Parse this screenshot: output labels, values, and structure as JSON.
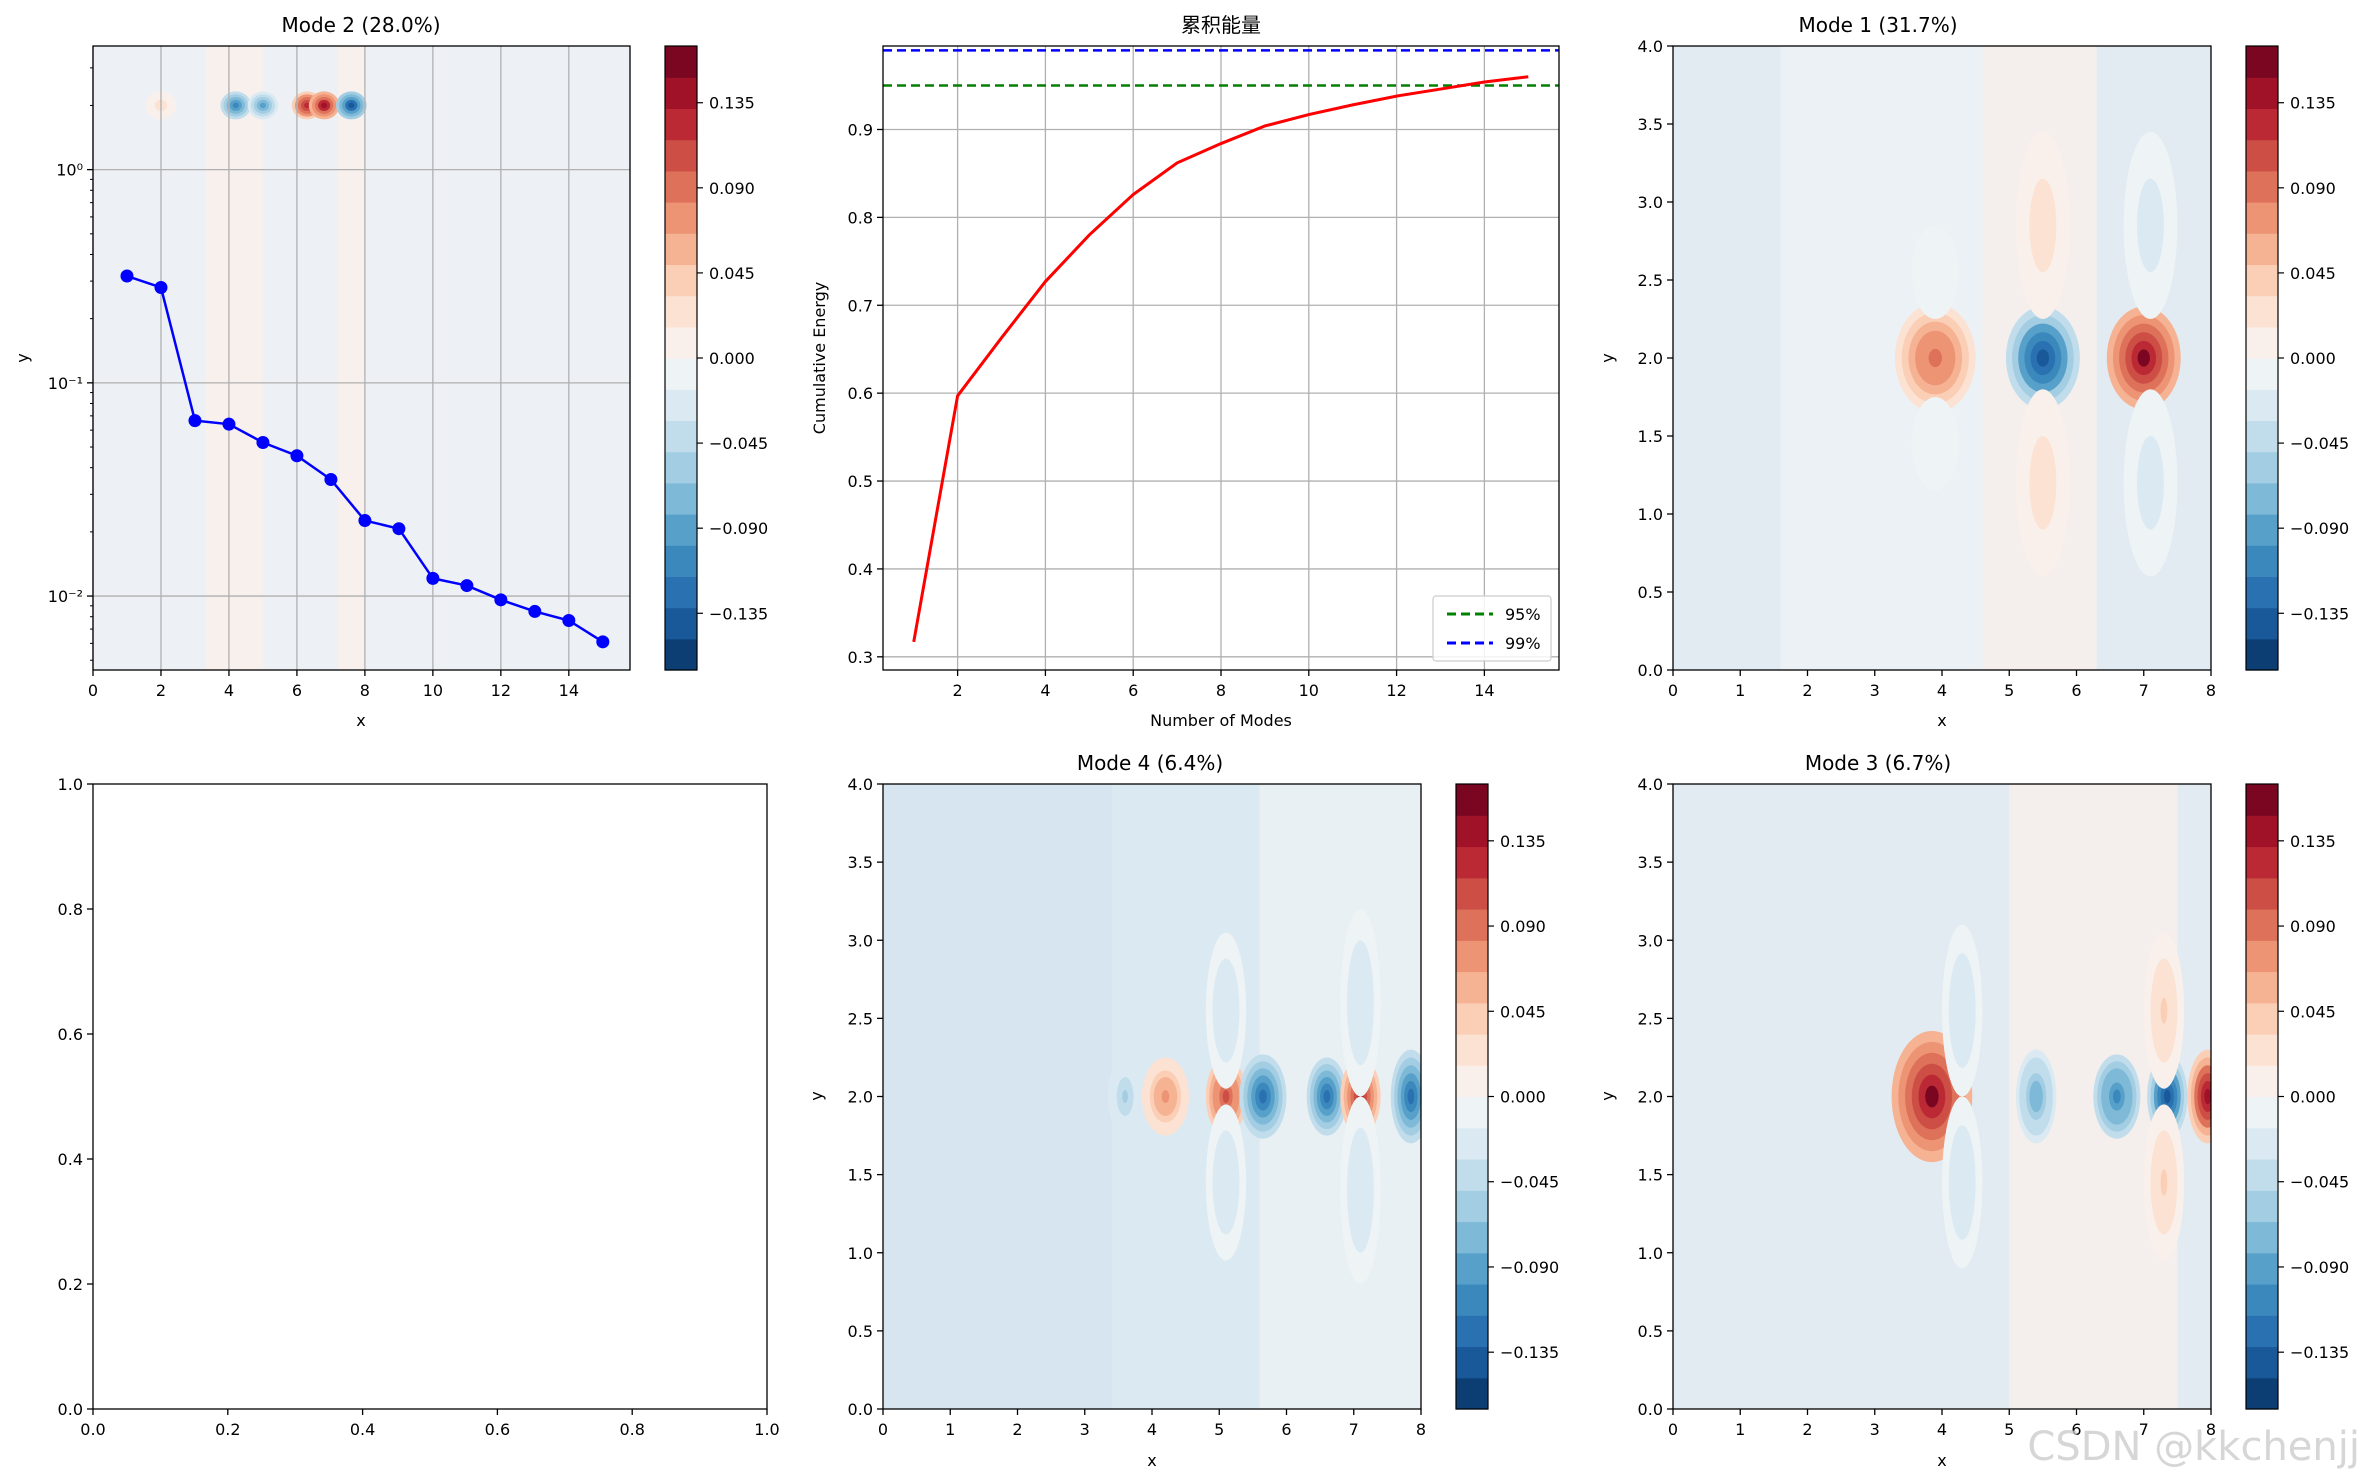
{
  "figure": {
    "watermark": "CSDN @kkchenjj"
  },
  "chart_data": [
    {
      "id": "mode2",
      "type": "heatmap",
      "title": "Mode 2 (28.0%)",
      "xlabel": "x",
      "ylabel": "y",
      "xticks": [
        "0",
        "2",
        "4",
        "6",
        "8",
        "10",
        "12",
        "14"
      ],
      "yticks": [
        "10⁰",
        "10⁻¹",
        "10⁻²"
      ],
      "ytick_values": [
        1,
        0.1,
        0.01
      ],
      "xlim": [
        0,
        15.8
      ],
      "yscale": "log",
      "ylim": [
        0.0045,
        3.8
      ],
      "grid": true,
      "overlay_series": {
        "type": "line",
        "marker": "circle",
        "color": "#0000ff",
        "x": [
          1,
          2,
          3,
          4,
          5,
          6,
          7,
          8,
          9,
          10,
          11,
          12,
          13,
          14,
          15
        ],
        "y": [
          0.317,
          0.28,
          0.0665,
          0.064,
          0.0525,
          0.0455,
          0.0352,
          0.0226,
          0.0207,
          0.0121,
          0.0112,
          0.0096,
          0.00847,
          0.00768,
          0.0061
        ]
      },
      "field": {
        "background": "#edf1f5",
        "features": [
          {
            "x": 4.2,
            "y": 2.0,
            "value": -0.11
          },
          {
            "x": 5.0,
            "y": 2.0,
            "value": -0.09
          },
          {
            "x": 6.3,
            "y": 2.0,
            "value": 0.13
          },
          {
            "x": 6.8,
            "y": 2.0,
            "value": 0.14
          },
          {
            "x": 7.6,
            "y": 2.0,
            "value": -0.14
          },
          {
            "x": 2.0,
            "y": 2.0,
            "value": 0.02
          }
        ]
      },
      "colorbar": {
        "ticks": [
          "0.135",
          "0.090",
          "0.045",
          "0.000",
          "−0.045",
          "−0.090",
          "−0.135"
        ],
        "tick_values": [
          0.135,
          0.09,
          0.045,
          0,
          -0.045,
          -0.09,
          -0.135
        ],
        "range": [
          -0.165,
          0.165
        ]
      }
    },
    {
      "id": "cumulative",
      "type": "line",
      "title": "累积能量",
      "xlabel": "Number of Modes",
      "ylabel": "Cumulative Energy",
      "xticks": [
        "2",
        "4",
        "6",
        "8",
        "10",
        "12",
        "14"
      ],
      "xtick_values": [
        2,
        4,
        6,
        8,
        10,
        12,
        14
      ],
      "yticks": [
        "0.3",
        "0.4",
        "0.5",
        "0.6",
        "0.7",
        "0.8",
        "0.9"
      ],
      "ytick_values": [
        0.3,
        0.4,
        0.5,
        0.6,
        0.7,
        0.8,
        0.9
      ],
      "xlim": [
        0.3,
        15.7
      ],
      "ylim": [
        0.285,
        0.995
      ],
      "grid": true,
      "legend_position": "lower-right",
      "series": [
        {
          "color": "#ff0000",
          "style": "solid",
          "x": [
            1,
            2,
            3,
            4,
            5,
            6,
            7,
            8,
            9,
            10,
            11,
            12,
            13,
            14,
            15
          ],
          "y": [
            0.317,
            0.597,
            0.663,
            0.727,
            0.78,
            0.826,
            0.862,
            0.884,
            0.904,
            0.917,
            0.928,
            0.938,
            0.946,
            0.954,
            0.96
          ]
        }
      ],
      "hlines": [
        {
          "name": "95%",
          "y": 0.95,
          "color": "#008000",
          "style": "dashed"
        },
        {
          "name": "99%",
          "y": 0.99,
          "color": "#0000ff",
          "style": "dashed"
        }
      ]
    },
    {
      "id": "mode1",
      "type": "heatmap",
      "title": "Mode 1 (31.7%)",
      "xlabel": "x",
      "ylabel": "y",
      "xticks": [
        "0",
        "1",
        "2",
        "3",
        "4",
        "5",
        "6",
        "7",
        "8"
      ],
      "yticks": [
        "0.0",
        "0.5",
        "1.0",
        "1.5",
        "2.0",
        "2.5",
        "3.0",
        "3.5",
        "4.0"
      ],
      "xlim": [
        0,
        8
      ],
      "ylim": [
        0,
        4
      ],
      "field": {
        "background": "#e2ebf2",
        "bands": [
          {
            "x_from": 1.6,
            "x_to": 4.6,
            "value": -0.004
          },
          {
            "x_from": 4.6,
            "x_to": 6.3,
            "value": 0.002
          }
        ],
        "features": [
          {
            "x": 3.9,
            "y": 2.0,
            "value": 0.09,
            "w": 0.6,
            "h": 0.35
          },
          {
            "x": 5.5,
            "y": 2.0,
            "value": -0.14,
            "w": 0.55,
            "h": 0.33
          },
          {
            "x": 7.0,
            "y": 2.0,
            "value": 0.15,
            "w": 0.55,
            "h": 0.33
          },
          {
            "x": 5.5,
            "y": 2.85,
            "value": 0.025,
            "w": 0.4,
            "h": 0.6
          },
          {
            "x": 5.5,
            "y": 1.2,
            "value": 0.025,
            "w": 0.4,
            "h": 0.6
          },
          {
            "x": 7.1,
            "y": 2.85,
            "value": -0.025,
            "w": 0.4,
            "h": 0.6
          },
          {
            "x": 7.1,
            "y": 1.2,
            "value": -0.025,
            "w": 0.4,
            "h": 0.6
          },
          {
            "x": 3.9,
            "y": 2.55,
            "value": -0.012,
            "w": 0.35,
            "h": 0.3
          },
          {
            "x": 3.9,
            "y": 1.45,
            "value": -0.012,
            "w": 0.35,
            "h": 0.3
          }
        ]
      },
      "colorbar": {
        "ticks": [
          "0.135",
          "0.090",
          "0.045",
          "0.000",
          "−0.045",
          "−0.090",
          "−0.135"
        ],
        "tick_values": [
          0.135,
          0.09,
          0.045,
          0,
          -0.045,
          -0.09,
          -0.135
        ],
        "range": [
          -0.165,
          0.165
        ]
      }
    },
    {
      "id": "empty",
      "type": "line",
      "xticks": [
        "0.0",
        "0.2",
        "0.4",
        "0.6",
        "0.8",
        "1.0"
      ],
      "yticks": [
        "0.0",
        "0.2",
        "0.4",
        "0.6",
        "0.8",
        "1.0"
      ],
      "xlim": [
        0,
        1
      ],
      "ylim": [
        0,
        1
      ],
      "series": []
    },
    {
      "id": "mode4",
      "type": "heatmap",
      "title": "Mode 4 (6.4%)",
      "xlabel": "x",
      "ylabel": "y",
      "xticks": [
        "0",
        "1",
        "2",
        "3",
        "4",
        "5",
        "6",
        "7",
        "8"
      ],
      "yticks": [
        "0.0",
        "0.5",
        "1.0",
        "1.5",
        "2.0",
        "2.5",
        "3.0",
        "3.5",
        "4.0"
      ],
      "xlim": [
        0,
        8
      ],
      "ylim": [
        0,
        4
      ],
      "field": {
        "background": "#d6e5f0",
        "bands": [
          {
            "x_from": 3.4,
            "x_to": 5.6,
            "value": -0.02
          },
          {
            "x_from": 5.6,
            "x_to": 8.0,
            "value": -0.006
          }
        ],
        "features": [
          {
            "x": 3.6,
            "y": 2.0,
            "value": -0.05,
            "w": 0.25,
            "h": 0.25
          },
          {
            "x": 4.2,
            "y": 2.0,
            "value": 0.07,
            "w": 0.35,
            "h": 0.25
          },
          {
            "x": 5.1,
            "y": 2.0,
            "value": 0.11,
            "w": 0.3,
            "h": 0.25
          },
          {
            "x": 5.65,
            "y": 2.0,
            "value": -0.13,
            "w": 0.35,
            "h": 0.27
          },
          {
            "x": 6.6,
            "y": 2.0,
            "value": -0.12,
            "w": 0.3,
            "h": 0.25
          },
          {
            "x": 7.1,
            "y": 2.0,
            "value": 0.13,
            "w": 0.3,
            "h": 0.25
          },
          {
            "x": 7.85,
            "y": 2.0,
            "value": -0.13,
            "w": 0.3,
            "h": 0.3
          },
          {
            "x": 5.1,
            "y": 2.55,
            "value": -0.03,
            "w": 0.3,
            "h": 0.5
          },
          {
            "x": 5.1,
            "y": 1.45,
            "value": -0.03,
            "w": 0.3,
            "h": 0.5
          },
          {
            "x": 7.1,
            "y": 2.6,
            "value": -0.03,
            "w": 0.3,
            "h": 0.6
          },
          {
            "x": 7.1,
            "y": 1.4,
            "value": -0.03,
            "w": 0.3,
            "h": 0.6
          }
        ]
      },
      "colorbar": {
        "ticks": [
          "0.135",
          "0.090",
          "0.045",
          "0.000",
          "−0.045",
          "−0.090",
          "−0.135"
        ],
        "tick_values": [
          0.135,
          0.09,
          0.045,
          0,
          -0.045,
          -0.09,
          -0.135
        ],
        "range": [
          -0.165,
          0.165
        ]
      }
    },
    {
      "id": "mode3",
      "type": "heatmap",
      "title": "Mode 3 (6.7%)",
      "xlabel": "x",
      "ylabel": "y",
      "xticks": [
        "0",
        "1",
        "2",
        "3",
        "4",
        "5",
        "6",
        "7",
        "8"
      ],
      "yticks": [
        "0.0",
        "0.5",
        "1.0",
        "1.5",
        "2.0",
        "2.5",
        "3.0",
        "3.5",
        "4.0"
      ],
      "xlim": [
        0,
        8
      ],
      "ylim": [
        0,
        4
      ],
      "field": {
        "background": "#e2ebf2",
        "bands": [
          {
            "x_from": 5.0,
            "x_to": 7.5,
            "value": 0.003
          }
        ],
        "features": [
          {
            "x": 3.85,
            "y": 2.0,
            "value": 0.15,
            "w": 0.6,
            "h": 0.42
          },
          {
            "x": 5.4,
            "y": 2.0,
            "value": -0.08,
            "w": 0.3,
            "h": 0.3
          },
          {
            "x": 6.6,
            "y": 2.0,
            "value": -0.11,
            "w": 0.35,
            "h": 0.27
          },
          {
            "x": 7.35,
            "y": 2.0,
            "value": -0.14,
            "w": 0.3,
            "h": 0.27
          },
          {
            "x": 7.95,
            "y": 2.0,
            "value": 0.14,
            "w": 0.3,
            "h": 0.3
          },
          {
            "x": 4.3,
            "y": 2.55,
            "value": -0.03,
            "w": 0.3,
            "h": 0.55
          },
          {
            "x": 4.3,
            "y": 1.45,
            "value": -0.03,
            "w": 0.3,
            "h": 0.55
          },
          {
            "x": 7.3,
            "y": 2.55,
            "value": 0.035,
            "w": 0.3,
            "h": 0.5
          },
          {
            "x": 7.3,
            "y": 1.45,
            "value": 0.035,
            "w": 0.3,
            "h": 0.5
          }
        ]
      },
      "colorbar": {
        "ticks": [
          "0.135",
          "0.090",
          "0.045",
          "0.000",
          "−0.045",
          "−0.090",
          "−0.135"
        ],
        "tick_values": [
          0.135,
          0.09,
          0.045,
          0,
          -0.045,
          -0.09,
          -0.135
        ],
        "range": [
          -0.165,
          0.165
        ]
      }
    }
  ]
}
